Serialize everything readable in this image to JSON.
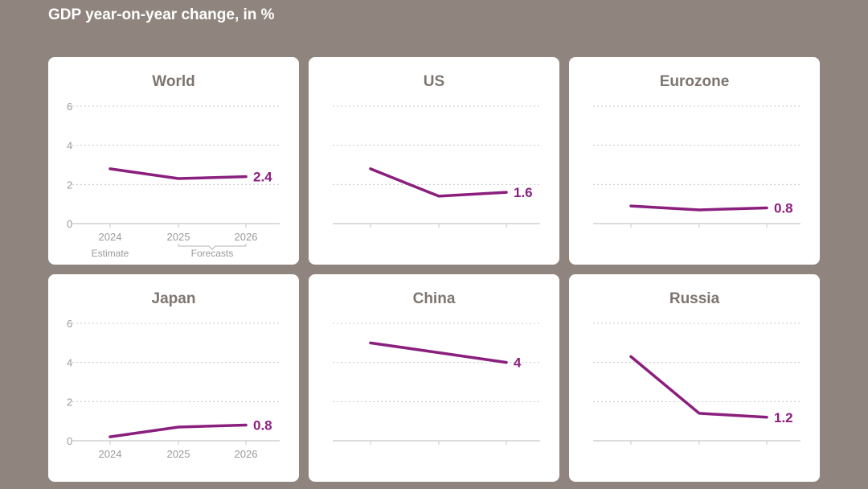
{
  "header": {
    "title": "GDP year-on-year change, in %"
  },
  "chart_data": [
    {
      "type": "line",
      "title": "World",
      "categories": [
        "2024",
        "2025",
        "2026"
      ],
      "series": [
        {
          "values": [
            2.8,
            2.3,
            2.4
          ]
        }
      ],
      "end_label": "2.4",
      "ylim": [
        0,
        6
      ],
      "yticks": [
        "0",
        "2",
        "4",
        "6"
      ],
      "show_y_ticks": true,
      "show_x_labels": true,
      "annotations": {
        "estimate": "Estimate",
        "forecasts": "Forecasts"
      },
      "grid": true
    },
    {
      "type": "line",
      "title": "US",
      "categories": [
        "2024",
        "2025",
        "2026"
      ],
      "series": [
        {
          "values": [
            2.8,
            1.4,
            1.6
          ]
        }
      ],
      "end_label": "1.6",
      "ylim": [
        0,
        6
      ],
      "show_y_ticks": false,
      "show_x_labels": false,
      "grid": true
    },
    {
      "type": "line",
      "title": "Eurozone",
      "categories": [
        "2024",
        "2025",
        "2026"
      ],
      "series": [
        {
          "values": [
            0.9,
            0.7,
            0.8
          ]
        }
      ],
      "end_label": "0.8",
      "ylim": [
        0,
        6
      ],
      "show_y_ticks": false,
      "show_x_labels": false,
      "grid": true
    },
    {
      "type": "line",
      "title": "Japan",
      "categories": [
        "2024",
        "2025",
        "2026"
      ],
      "series": [
        {
          "values": [
            0.2,
            0.7,
            0.8
          ]
        }
      ],
      "end_label": "0.8",
      "ylim": [
        0,
        6
      ],
      "yticks": [
        "0",
        "2",
        "4",
        "6"
      ],
      "show_y_ticks": true,
      "show_x_labels": true,
      "grid": true
    },
    {
      "type": "line",
      "title": "China",
      "categories": [
        "2024",
        "2025",
        "2026"
      ],
      "series": [
        {
          "values": [
            5.0,
            4.5,
            4.0
          ]
        }
      ],
      "end_label": "4",
      "ylim": [
        0,
        6
      ],
      "show_y_ticks": false,
      "show_x_labels": false,
      "grid": true
    },
    {
      "type": "line",
      "title": "Russia",
      "categories": [
        "2024",
        "2025",
        "2026"
      ],
      "series": [
        {
          "values": [
            4.3,
            1.4,
            1.2
          ]
        }
      ],
      "end_label": "1.2",
      "ylim": [
        0,
        6
      ],
      "show_y_ticks": false,
      "show_x_labels": false,
      "grid": true
    }
  ],
  "colors": {
    "line": "#8a1f7e",
    "background": "#8f857e",
    "panel": "#ffffff",
    "title": "#7d7570"
  }
}
